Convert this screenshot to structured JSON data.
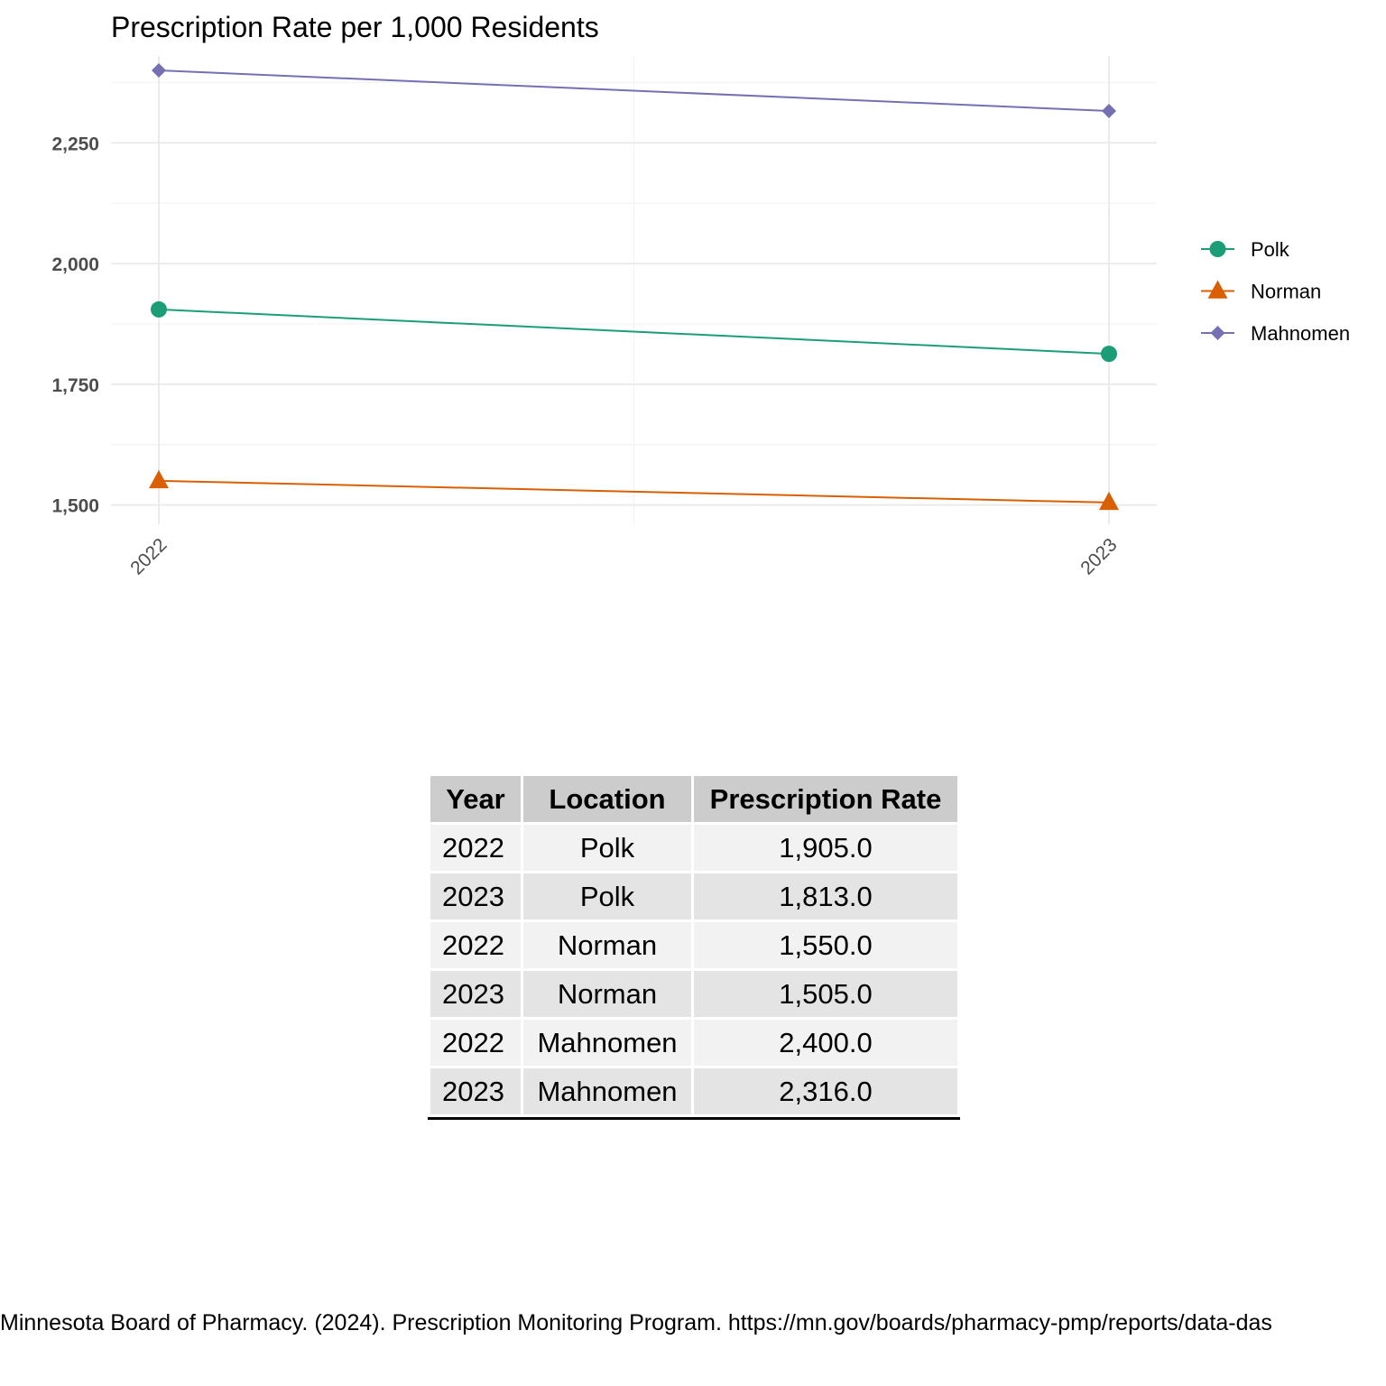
{
  "chart_data": {
    "type": "line",
    "title": "Prescription Rate per 1,000 Residents",
    "xlabel": "",
    "ylabel": "",
    "categories": [
      "2022",
      "2023"
    ],
    "ylim": [
      1460,
      2430
    ],
    "yticks": [
      1500,
      1750,
      2000,
      2250
    ],
    "ytick_labels": [
      "1,500",
      "1,750",
      "2,000",
      "2,250"
    ],
    "grid": true,
    "legend_position": "right",
    "series": [
      {
        "name": "Polk",
        "values": [
          1905,
          1813
        ],
        "color": "#1b9e77",
        "marker": "circle"
      },
      {
        "name": "Norman",
        "values": [
          1550,
          1505
        ],
        "color": "#d95f02",
        "marker": "triangle"
      },
      {
        "name": "Mahnomen",
        "values": [
          2400,
          2316
        ],
        "color": "#7570b3",
        "marker": "diamond"
      }
    ]
  },
  "table": {
    "headers": [
      "Year",
      "Location",
      "Prescription Rate"
    ],
    "rows": [
      [
        "2022",
        "Polk",
        "1,905.0"
      ],
      [
        "2023",
        "Polk",
        "1,813.0"
      ],
      [
        "2022",
        "Norman",
        "1,550.0"
      ],
      [
        "2023",
        "Norman",
        "1,505.0"
      ],
      [
        "2022",
        "Mahnomen",
        "2,400.0"
      ],
      [
        "2023",
        "Mahnomen",
        "2,316.0"
      ]
    ]
  },
  "caption": "Minnesota Board of Pharmacy. (2024). Prescription Monitoring Program. https://mn.gov/boards/pharmacy-pmp/reports/data-das"
}
